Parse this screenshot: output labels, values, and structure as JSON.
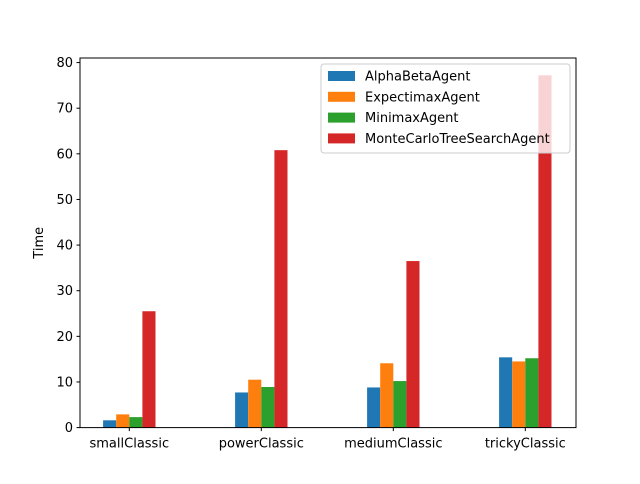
{
  "chart_data": {
    "type": "bar",
    "title": "",
    "xlabel": "",
    "ylabel": "Time",
    "categories": [
      "smallClassic",
      "powerClassic",
      "mediumClassic",
      "trickyClassic"
    ],
    "ylim": [
      0,
      81
    ],
    "yticks": [
      0,
      10,
      20,
      30,
      40,
      50,
      60,
      70,
      80
    ],
    "grid": false,
    "legend_position": "top-right",
    "series": [
      {
        "name": "AlphaBetaAgent",
        "color": "#1f77b4",
        "values": [
          1.6,
          7.7,
          8.8,
          15.4
        ]
      },
      {
        "name": "ExpectimaxAgent",
        "color": "#ff7f0e",
        "values": [
          2.9,
          10.5,
          14.1,
          14.5
        ]
      },
      {
        "name": "MinimaxAgent",
        "color": "#2ca02c",
        "values": [
          2.3,
          8.9,
          10.2,
          15.2
        ]
      },
      {
        "name": "MonteCarloTreeSearchAgent",
        "color": "#d62728",
        "values": [
          25.5,
          60.8,
          36.5,
          77.2
        ]
      }
    ]
  }
}
